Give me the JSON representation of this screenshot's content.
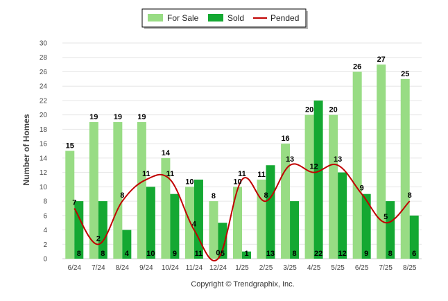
{
  "colors": {
    "for_sale": "#98dc84",
    "sold": "#14a832",
    "pended": "#c00000"
  },
  "copyright": "Copyright © Trendgraphix, Inc.",
  "chart_data": {
    "type": "bar",
    "ylabel": "Number of Homes",
    "xlabel": "",
    "ylim": [
      0,
      30
    ],
    "yticks": [
      "0",
      "2",
      "4",
      "6",
      "8",
      "10",
      "12",
      "14",
      "16",
      "18",
      "20",
      "22",
      "24",
      "26",
      "28",
      "30"
    ],
    "grid": true,
    "legend_position": "top-center",
    "categories": [
      "6/24",
      "7/24",
      "8/24",
      "9/24",
      "10/24",
      "11/24",
      "12/24",
      "1/25",
      "2/25",
      "3/25",
      "4/25",
      "5/25",
      "6/25",
      "7/25",
      "8/25"
    ],
    "series": [
      {
        "name": "For Sale",
        "type": "bar",
        "values": [
          15,
          19,
          19,
          19,
          14,
          10,
          8,
          10,
          11,
          16,
          20,
          20,
          26,
          27,
          25
        ]
      },
      {
        "name": "Sold",
        "type": "bar",
        "values": [
          8,
          8,
          4,
          10,
          9,
          11,
          5,
          1,
          13,
          8,
          22,
          12,
          9,
          8,
          6
        ]
      },
      {
        "name": "Pended",
        "type": "line",
        "values": [
          7,
          2,
          8,
          11,
          11,
          4,
          0,
          11,
          8,
          13,
          12,
          13,
          9,
          5,
          8
        ]
      }
    ]
  }
}
